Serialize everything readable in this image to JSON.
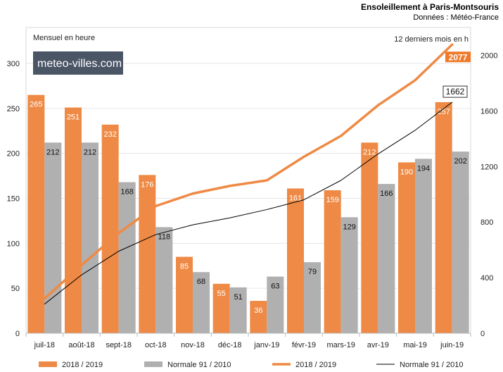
{
  "header": {
    "title": "Ensoleillement à Paris-Montsouris",
    "source": "Données : Météo-France"
  },
  "logo": {
    "text": "meteo-villes.com"
  },
  "colors": {
    "orange": "#ee8a45",
    "grey": "#b0b0b0",
    "black": "#000000",
    "accent_label": "#f07a2a"
  },
  "chart_data": {
    "type": "bar",
    "left_axis_title": "Mensuel en heure",
    "right_axis_title": "12 derniers mois en h",
    "categories": [
      "juil-18",
      "août-18",
      "sept-18",
      "oct-18",
      "nov-18",
      "déc-18",
      "janv-19",
      "févr-19",
      "mars-19",
      "avr-19",
      "mai-19",
      "juin-19"
    ],
    "ylim_left": [
      0,
      340
    ],
    "yticks_left": [
      0,
      50,
      100,
      150,
      200,
      250,
      300
    ],
    "ylim_right": [
      0,
      2200
    ],
    "yticks_right": [
      0,
      400,
      800,
      1200,
      1600,
      2000
    ],
    "grid": true,
    "series": [
      {
        "name": "2018 / 2019",
        "kind": "bar",
        "axis": "left",
        "color": "#ee8a45",
        "values": [
          265,
          251,
          232,
          176,
          85,
          55,
          36,
          161,
          159,
          212,
          190,
          257
        ]
      },
      {
        "name": "Normale 91 / 2010",
        "kind": "bar",
        "axis": "left",
        "color": "#b0b0b0",
        "values": [
          212,
          212,
          168,
          118,
          68,
          51,
          63,
          79,
          129,
          166,
          194,
          202
        ]
      },
      {
        "name": "2018 / 2019",
        "kind": "line",
        "axis": "right",
        "color": "#ee8a45",
        "values": [
          250,
          490,
          720,
          915,
          1005,
          1060,
          1100,
          1270,
          1420,
          1640,
          1820,
          2077
        ],
        "end_label": "2077"
      },
      {
        "name": "Normale 91 / 2010",
        "kind": "line",
        "axis": "right",
        "color": "#000000",
        "values": [
          210,
          420,
          590,
          710,
          780,
          830,
          890,
          960,
          1100,
          1290,
          1460,
          1662
        ],
        "end_label": "1662"
      }
    ],
    "legend": [
      {
        "label": "2018 / 2019",
        "symbol": "bar",
        "color": "#ee8a45"
      },
      {
        "label": "Normale 91 / 2010",
        "symbol": "bar",
        "color": "#b0b0b0"
      },
      {
        "label": "2018 / 2019",
        "symbol": "line",
        "color": "#ee8a45"
      },
      {
        "label": "Normale 91 / 2010",
        "symbol": "line",
        "color": "#000000"
      }
    ],
    "legend_position": "bottom"
  }
}
